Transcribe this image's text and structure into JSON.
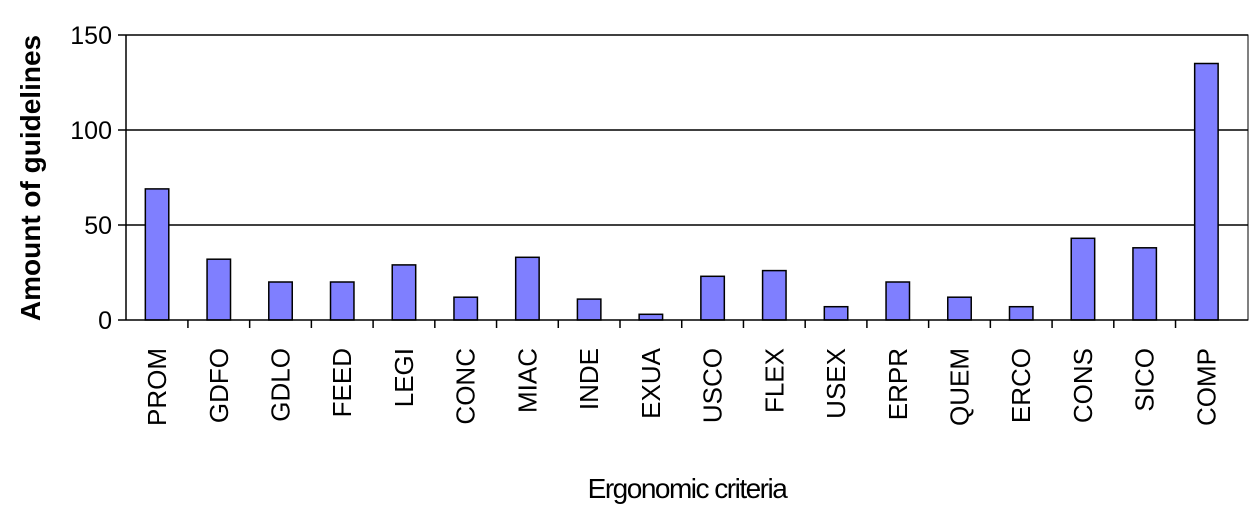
{
  "chart_data": {
    "type": "bar",
    "title": "",
    "xlabel": "Ergonomic criteria",
    "ylabel": "Amount of guidelines",
    "ylim": [
      0,
      150
    ],
    "yticks": [
      0,
      50,
      100,
      150
    ],
    "grid": true,
    "bar_color": "#7f7fff",
    "categories": [
      "PROM",
      "GDFO",
      "GDLO",
      "FEED",
      "LEGI",
      "CONC",
      "MIAC",
      "INDE",
      "EXUA",
      "USCO",
      "FLEX",
      "USEX",
      "ERPR",
      "QUEM",
      "ERCO",
      "CONS",
      "SICO",
      "COMP"
    ],
    "values": [
      69,
      32,
      20,
      20,
      29,
      12,
      33,
      11,
      3,
      23,
      26,
      7,
      20,
      12,
      7,
      43,
      38,
      135
    ]
  }
}
